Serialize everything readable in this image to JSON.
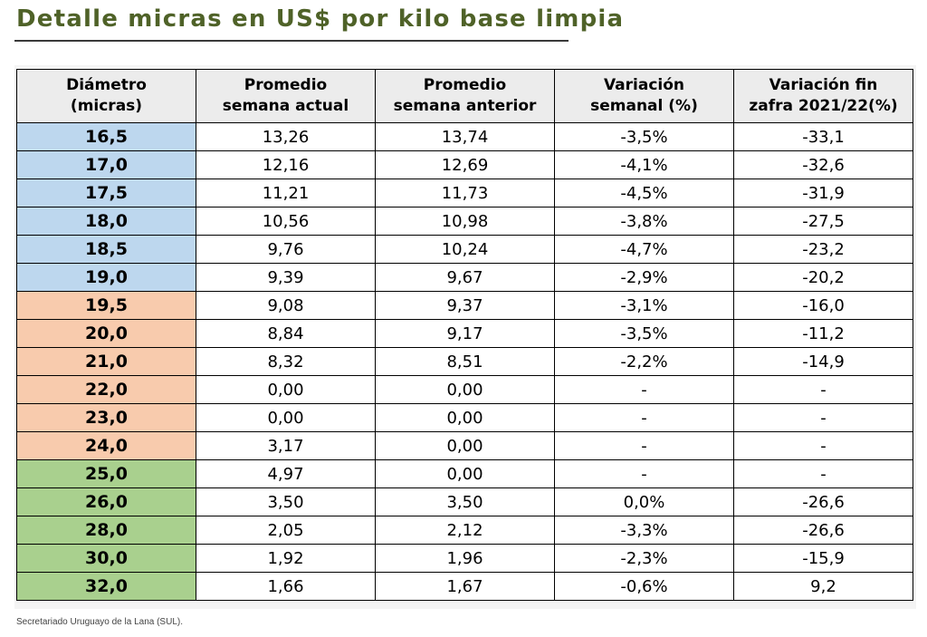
{
  "title": "Detalle micras en US$ por kilo base limpia",
  "headers": [
    {
      "line1": "Diámetro",
      "line2": "(micras)"
    },
    {
      "line1": "Promedio",
      "line2": "semana actual"
    },
    {
      "line1": "Promedio",
      "line2": "semana anterior"
    },
    {
      "line1": "Variación",
      "line2": "semanal (%)"
    },
    {
      "line1": "Variación fin",
      "line2": "zafra 2021/22(%)"
    }
  ],
  "colors": {
    "group_fine": "#bdd7ee",
    "group_medium": "#f8cbad",
    "group_coarse": "#a9d08e",
    "title": "#4f6228"
  },
  "rows": [
    {
      "diametro": "16,5",
      "actual": "13,26",
      "anterior": "13,74",
      "var_semanal": "-3,5%",
      "var_zafra": "-33,1",
      "group": "fine"
    },
    {
      "diametro": "17,0",
      "actual": "12,16",
      "anterior": "12,69",
      "var_semanal": "-4,1%",
      "var_zafra": "-32,6",
      "group": "fine"
    },
    {
      "diametro": "17,5",
      "actual": "11,21",
      "anterior": "11,73",
      "var_semanal": "-4,5%",
      "var_zafra": "-31,9",
      "group": "fine"
    },
    {
      "diametro": "18,0",
      "actual": "10,56",
      "anterior": "10,98",
      "var_semanal": "-3,8%",
      "var_zafra": "-27,5",
      "group": "fine"
    },
    {
      "diametro": "18,5",
      "actual": "9,76",
      "anterior": "10,24",
      "var_semanal": "-4,7%",
      "var_zafra": "-23,2",
      "group": "fine"
    },
    {
      "diametro": "19,0",
      "actual": "9,39",
      "anterior": "9,67",
      "var_semanal": "-2,9%",
      "var_zafra": "-20,2",
      "group": "fine"
    },
    {
      "diametro": "19,5",
      "actual": "9,08",
      "anterior": "9,37",
      "var_semanal": "-3,1%",
      "var_zafra": "-16,0",
      "group": "medium"
    },
    {
      "diametro": "20,0",
      "actual": "8,84",
      "anterior": "9,17",
      "var_semanal": "-3,5%",
      "var_zafra": "-11,2",
      "group": "medium"
    },
    {
      "diametro": "21,0",
      "actual": "8,32",
      "anterior": "8,51",
      "var_semanal": "-2,2%",
      "var_zafra": "-14,9",
      "group": "medium"
    },
    {
      "diametro": "22,0",
      "actual": "0,00",
      "anterior": "0,00",
      "var_semanal": "-",
      "var_zafra": "-",
      "group": "medium"
    },
    {
      "diametro": "23,0",
      "actual": "0,00",
      "anterior": "0,00",
      "var_semanal": "-",
      "var_zafra": "-",
      "group": "medium"
    },
    {
      "diametro": "24,0",
      "actual": "3,17",
      "anterior": "0,00",
      "var_semanal": "-",
      "var_zafra": "-",
      "group": "medium"
    },
    {
      "diametro": "25,0",
      "actual": "4,97",
      "anterior": "0,00",
      "var_semanal": "-",
      "var_zafra": "-",
      "group": "coarse"
    },
    {
      "diametro": "26,0",
      "actual": "3,50",
      "anterior": "3,50",
      "var_semanal": "0,0%",
      "var_zafra": "-26,6",
      "group": "coarse"
    },
    {
      "diametro": "28,0",
      "actual": "2,05",
      "anterior": "2,12",
      "var_semanal": "-3,3%",
      "var_zafra": "-26,6",
      "group": "coarse"
    },
    {
      "diametro": "30,0",
      "actual": "1,92",
      "anterior": "1,96",
      "var_semanal": "-2,3%",
      "var_zafra": "-15,9",
      "group": "coarse"
    },
    {
      "diametro": "32,0",
      "actual": "1,66",
      "anterior": "1,67",
      "var_semanal": "-0,6%",
      "var_zafra": "9,2",
      "group": "coarse"
    }
  ],
  "footer": "Secretariado Uruguayo de la Lana (SUL)."
}
